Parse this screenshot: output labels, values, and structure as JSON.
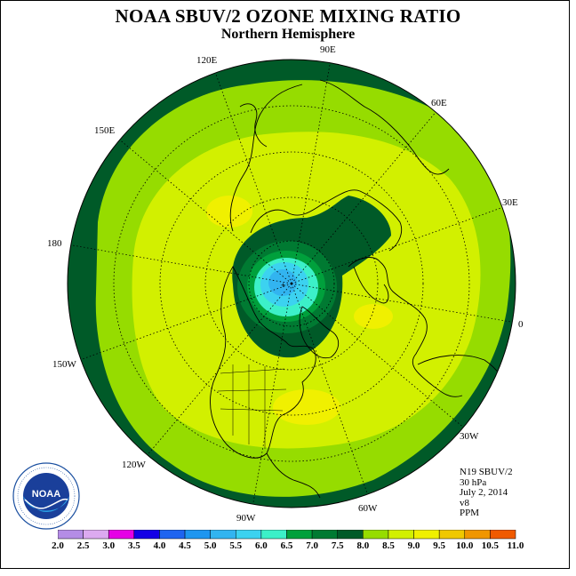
{
  "title": "NOAA SBUV/2 OZONE MIXING RATIO",
  "subtitle": "Northern Hemisphere",
  "longitude_labels": {
    "e120": "120E",
    "e90": "90E",
    "e60": "60E",
    "e150": "150E",
    "e30": "30E",
    "l180": "180",
    "l0": "0",
    "w150": "150W",
    "w30": "30W",
    "w120": "120W",
    "w60": "60W",
    "w90": "90W"
  },
  "info": {
    "instrument": "N19 SBUV/2",
    "pressure": "30 hPa",
    "date": "July 2, 2014",
    "version": "v8",
    "units": "PPM"
  },
  "colorbar": {
    "labels": [
      "2.0",
      "2.5",
      "3.0",
      "3.5",
      "4.0",
      "4.5",
      "5.0",
      "5.5",
      "6.0",
      "6.5",
      "7.0",
      "7.5",
      "8.0",
      "8.5",
      "9.0",
      "9.5",
      "10.0",
      "10.5",
      "11.0"
    ],
    "colors": [
      "#b48ce6",
      "#dcaaf0",
      "#e600e6",
      "#1400e6",
      "#1e64f0",
      "#1e96f0",
      "#32b4f0",
      "#3cd2f0",
      "#3cf0c8",
      "#00a03c",
      "#007a32",
      "#005a28",
      "#96dc00",
      "#d2f000",
      "#f0f000",
      "#f0c800",
      "#f09600",
      "#f05a00",
      "#e60000",
      "#8c5028"
    ]
  },
  "logo": {
    "text": "NOAA",
    "ring_text": "NATIONAL OCEANIC AND ATMOSPHERIC ADMINISTRATION · U.S. DEPARTMENT OF COMMERCE"
  }
}
